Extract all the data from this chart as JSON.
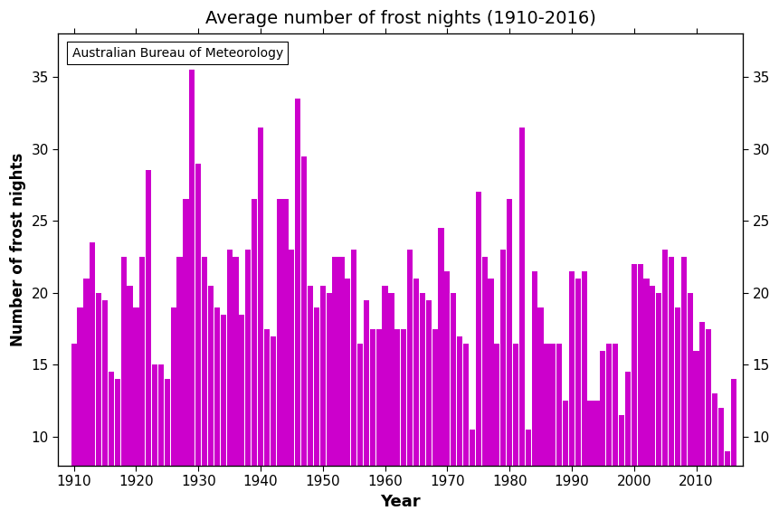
{
  "title": "Average number of frost nights (1910-2016)",
  "xlabel": "Year",
  "ylabel": "Number of frost nights",
  "source_label": "Australian Bureau of Meteorology",
  "bar_color": "#CC00CC",
  "background_color": "#ffffff",
  "ylim": [
    8,
    38
  ],
  "yticks": [
    10,
    15,
    20,
    25,
    30,
    35
  ],
  "xticks": [
    1910,
    1920,
    1930,
    1940,
    1950,
    1960,
    1970,
    1980,
    1990,
    2000,
    2010
  ],
  "years": [
    1910,
    1911,
    1912,
    1913,
    1914,
    1915,
    1916,
    1917,
    1918,
    1919,
    1920,
    1921,
    1922,
    1923,
    1924,
    1925,
    1926,
    1927,
    1928,
    1929,
    1930,
    1931,
    1932,
    1933,
    1934,
    1935,
    1936,
    1937,
    1938,
    1939,
    1940,
    1941,
    1942,
    1943,
    1944,
    1945,
    1946,
    1947,
    1948,
    1949,
    1950,
    1951,
    1952,
    1953,
    1954,
    1955,
    1956,
    1957,
    1958,
    1959,
    1960,
    1961,
    1962,
    1963,
    1964,
    1965,
    1966,
    1967,
    1968,
    1969,
    1970,
    1971,
    1972,
    1973,
    1974,
    1975,
    1976,
    1977,
    1978,
    1979,
    1980,
    1981,
    1982,
    1983,
    1984,
    1985,
    1986,
    1987,
    1988,
    1989,
    1990,
    1991,
    1992,
    1993,
    1994,
    1995,
    1996,
    1997,
    1998,
    1999,
    2000,
    2001,
    2002,
    2003,
    2004,
    2005,
    2006,
    2007,
    2008,
    2009,
    2010,
    2011,
    2012,
    2013,
    2014,
    2015,
    2016
  ],
  "values": [
    16.5,
    19.0,
    21.0,
    23.5,
    20.0,
    19.5,
    14.5,
    14.0,
    22.5,
    20.5,
    19.0,
    22.5,
    28.5,
    15.0,
    15.0,
    14.0,
    19.0,
    22.5,
    26.5,
    35.5,
    29.0,
    22.5,
    20.5,
    19.0,
    18.5,
    23.0,
    22.5,
    18.5,
    23.0,
    26.5,
    31.5,
    17.5,
    17.0,
    26.5,
    26.5,
    23.0,
    33.5,
    29.5,
    20.5,
    19.0,
    20.5,
    20.0,
    22.5,
    22.5,
    21.0,
    23.0,
    16.5,
    19.5,
    17.5,
    17.5,
    20.5,
    20.0,
    17.5,
    17.5,
    23.0,
    21.0,
    20.0,
    19.5,
    17.5,
    24.5,
    21.5,
    20.0,
    17.0,
    16.5,
    10.5,
    27.0,
    22.5,
    21.0,
    16.5,
    23.0,
    26.5,
    16.5,
    31.5,
    10.5,
    21.5,
    19.0,
    16.5,
    16.5,
    16.5,
    12.5,
    21.5,
    21.0,
    21.5,
    12.5,
    12.5,
    16.0,
    16.5,
    16.5,
    11.5,
    14.5,
    22.0,
    22.0,
    21.0,
    20.5,
    20.0,
    23.0,
    22.5,
    19.0,
    22.5,
    20.0,
    16.0,
    18.0,
    17.5,
    13.0,
    12.0,
    9.0,
    14.0
  ]
}
